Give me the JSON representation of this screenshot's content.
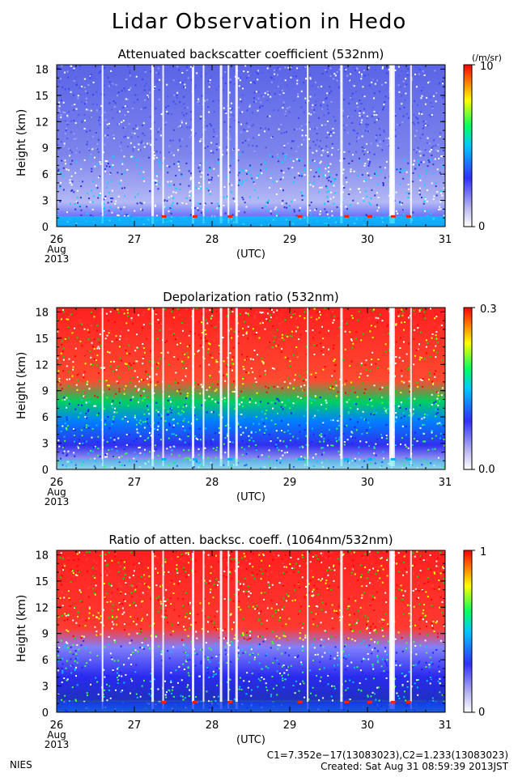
{
  "page": {
    "title": "Lidar Observation in Hedo",
    "footer_left": "NIES",
    "footer_constants": "C1=7.352e−17(13083023),C2=1.233(13083023)",
    "footer_created": "Created: Sat Aug 31 08:59:39 2013JST"
  },
  "colors": {
    "colormap": [
      "#ffffff",
      "#c8c8f0",
      "#3c3cff",
      "#00d0ff",
      "#00ff40",
      "#ffff00",
      "#ff0000"
    ],
    "axes": "#000000"
  },
  "chart_data": [
    {
      "type": "heatmap",
      "title": "Attenuated backscatter coefficient (532nm)",
      "ylabel": "Height (km)",
      "xlabel": "(UTC)",
      "x_ticks": [
        "26",
        "27",
        "28",
        "29",
        "30",
        "31"
      ],
      "x_date_labels": [
        "Aug",
        "2013"
      ],
      "y_ticks": [
        "0",
        "3",
        "6",
        "9",
        "12",
        "15",
        "18"
      ],
      "xlim": [
        26,
        31
      ],
      "ylim": [
        0,
        18.5
      ],
      "colorbar": {
        "top_label": "10",
        "bottom_label": "0",
        "unit": "(/m/sr)"
      }
    },
    {
      "type": "heatmap",
      "title": "Depolarization ratio (532nm)",
      "ylabel": "Height (km)",
      "xlabel": "(UTC)",
      "x_ticks": [
        "26",
        "27",
        "28",
        "29",
        "30",
        "31"
      ],
      "x_date_labels": [
        "Aug",
        "2013"
      ],
      "y_ticks": [
        "0",
        "3",
        "6",
        "9",
        "12",
        "15",
        "18"
      ],
      "xlim": [
        26,
        31
      ],
      "ylim": [
        0,
        18.5
      ],
      "colorbar": {
        "top_label": "0.3",
        "bottom_label": "0.0",
        "unit": ""
      }
    },
    {
      "type": "heatmap",
      "title": "Ratio of atten. backsc. coeff. (1064nm/532nm)",
      "ylabel": "Height (km)",
      "xlabel": "(UTC)",
      "x_ticks": [
        "26",
        "27",
        "28",
        "29",
        "30",
        "31"
      ],
      "x_date_labels": [
        "Aug",
        "2013"
      ],
      "y_ticks": [
        "0",
        "3",
        "6",
        "9",
        "12",
        "15",
        "18"
      ],
      "xlim": [
        26,
        31
      ],
      "ylim": [
        0,
        18.5
      ],
      "colorbar": {
        "top_label": "1",
        "bottom_label": "0",
        "unit": ""
      }
    }
  ]
}
